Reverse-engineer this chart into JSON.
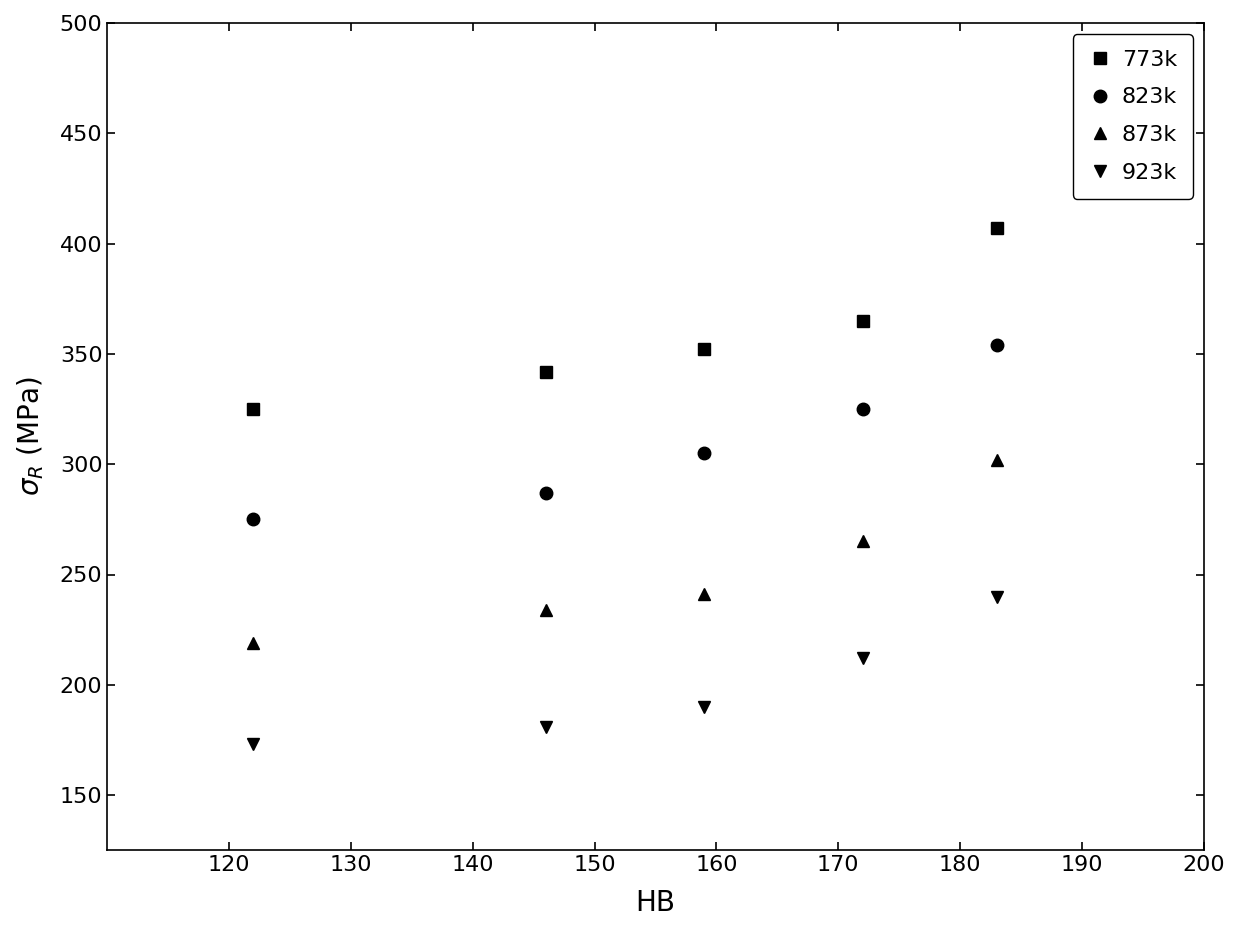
{
  "series": [
    {
      "label": "773k",
      "marker": "s",
      "hb": [
        122,
        146,
        159,
        172,
        183
      ],
      "sigma": [
        325,
        342,
        352,
        365,
        407
      ]
    },
    {
      "label": "823k",
      "marker": "o",
      "hb": [
        122,
        146,
        159,
        172,
        183
      ],
      "sigma": [
        275,
        287,
        305,
        325,
        354
      ]
    },
    {
      "label": "873k",
      "marker": "^",
      "hb": [
        122,
        146,
        159,
        172,
        183
      ],
      "sigma": [
        219,
        234,
        241,
        265,
        302
      ]
    },
    {
      "label": "923k",
      "marker": "v",
      "hb": [
        122,
        146,
        159,
        172,
        183
      ],
      "sigma": [
        173,
        181,
        190,
        212,
        240
      ]
    }
  ],
  "xlabel": "HB",
  "ylabel": "σ_R (MPa)",
  "xlim": [
    110,
    200
  ],
  "ylim": [
    125,
    500
  ],
  "xticks": [
    120,
    130,
    140,
    150,
    160,
    170,
    180,
    190,
    200
  ],
  "yticks": [
    150,
    200,
    250,
    300,
    350,
    400,
    450,
    500
  ],
  "color": "#000000",
  "background_color": "#ffffff",
  "legend_loc": "upper right",
  "marker_size": 9,
  "line_width": 1.8
}
